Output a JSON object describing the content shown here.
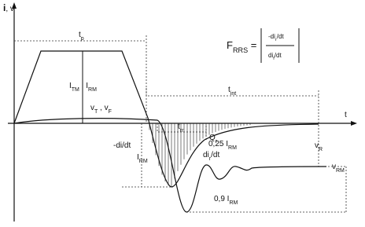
{
  "labels": {
    "axis_y": [
      {
        "text": "i"
      },
      {
        "text": ", v"
      }
    ],
    "axis_x": [
      {
        "text": "t"
      }
    ],
    "tp": [
      {
        "text": "t"
      },
      {
        "sub": "p"
      }
    ],
    "tint": [
      {
        "text": "t"
      },
      {
        "sub": "int"
      }
    ],
    "trr": [
      {
        "text": "t"
      },
      {
        "sub": "rr"
      }
    ],
    "qr": [
      {
        "text": "Q"
      },
      {
        "sub": "r"
      }
    ],
    "itm": [
      {
        "text": "I"
      },
      {
        "sub": "TM"
      },
      {
        "text": " , I"
      },
      {
        "sub": "RM"
      }
    ],
    "vt": [
      {
        "text": "v"
      },
      {
        "sub": "T"
      },
      {
        "text": " , v"
      },
      {
        "sub": "F"
      }
    ],
    "didt": [
      {
        "text": "-di/dt"
      }
    ],
    "irm": [
      {
        "text": "I"
      },
      {
        "sub": "RM"
      }
    ],
    "dirdt": [
      {
        "text": "di"
      },
      {
        "sub": "r"
      },
      {
        "text": "/dt"
      }
    ],
    "q25": [
      {
        "text": "0,25 I"
      },
      {
        "sub": "RM"
      }
    ],
    "vr": [
      {
        "text": "v"
      },
      {
        "sub": "R"
      }
    ],
    "vrm": [
      {
        "text": "v"
      },
      {
        "sub": "RM"
      }
    ],
    "q9": [
      {
        "text": "0,9 I"
      },
      {
        "sub": "RM"
      }
    ],
    "frrs": [
      {
        "text": "F"
      },
      {
        "sub": "RRS"
      },
      {
        "text": " ="
      }
    ],
    "frac_top": [
      {
        "text": "-di"
      },
      {
        "sub": "r"
      },
      {
        "text": "/dt"
      }
    ],
    "frac_bottom": [
      {
        "text": "di"
      },
      {
        "sub": "f"
      },
      {
        "text": "/dt"
      }
    ]
  }
}
